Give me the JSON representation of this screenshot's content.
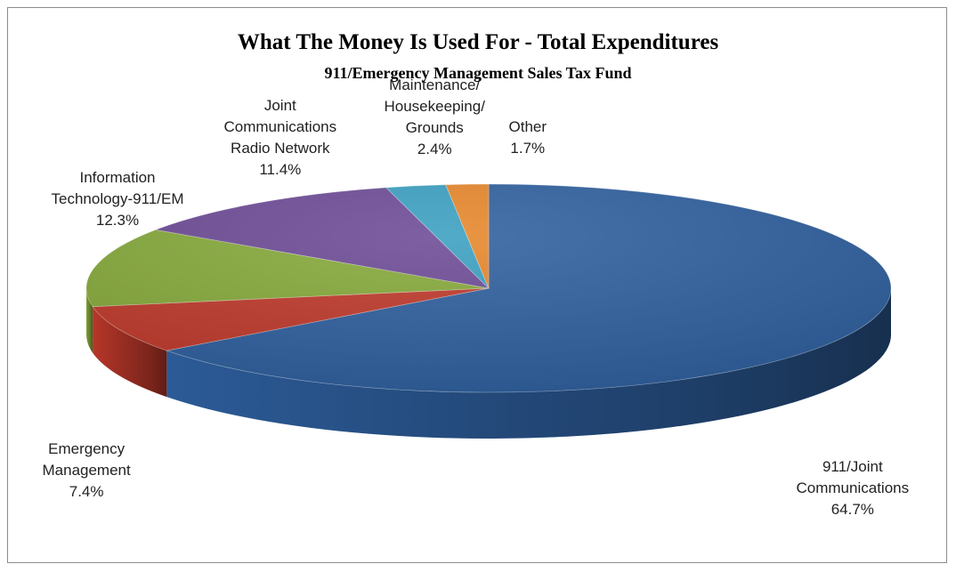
{
  "chart_data": {
    "type": "pie",
    "title": "What The Money Is Used For - Total Expenditures",
    "subtitle": "911/Emergency Management Sales Tax Fund",
    "slices": [
      {
        "name": "911/Joint Communications",
        "label_lines": [
          "911/Joint",
          "Communications"
        ],
        "value": 64.7,
        "value_label": "64.7%",
        "color": "#2e5f9e"
      },
      {
        "name": "Emergency Management",
        "label_lines": [
          "Emergency",
          "Management"
        ],
        "value": 7.4,
        "value_label": "7.4%",
        "color": "#c0392b"
      },
      {
        "name": "Information Technology-911/EM",
        "label_lines": [
          "Information",
          "Technology-911/EM"
        ],
        "value": 12.3,
        "value_label": "12.3%",
        "color": "#86a93a"
      },
      {
        "name": "Joint Communications Radio Network",
        "label_lines": [
          "Joint",
          "Communications",
          "Radio Network"
        ],
        "value": 11.4,
        "value_label": "11.4%",
        "color": "#6d4b96"
      },
      {
        "name": "Maintenance/ Housekeeping/ Grounds",
        "label_lines": [
          "Maintenance/",
          "Housekeeping/",
          "Grounds"
        ],
        "value": 2.4,
        "value_label": "2.4%",
        "color": "#3a9fc0"
      },
      {
        "name": "Other",
        "label_lines": [
          "Other"
        ],
        "value": 1.7,
        "value_label": "1.7%",
        "color": "#e6862a"
      }
    ],
    "start": "12 o'clock",
    "direction": "clockwise",
    "style": "3D",
    "legend": "none"
  }
}
